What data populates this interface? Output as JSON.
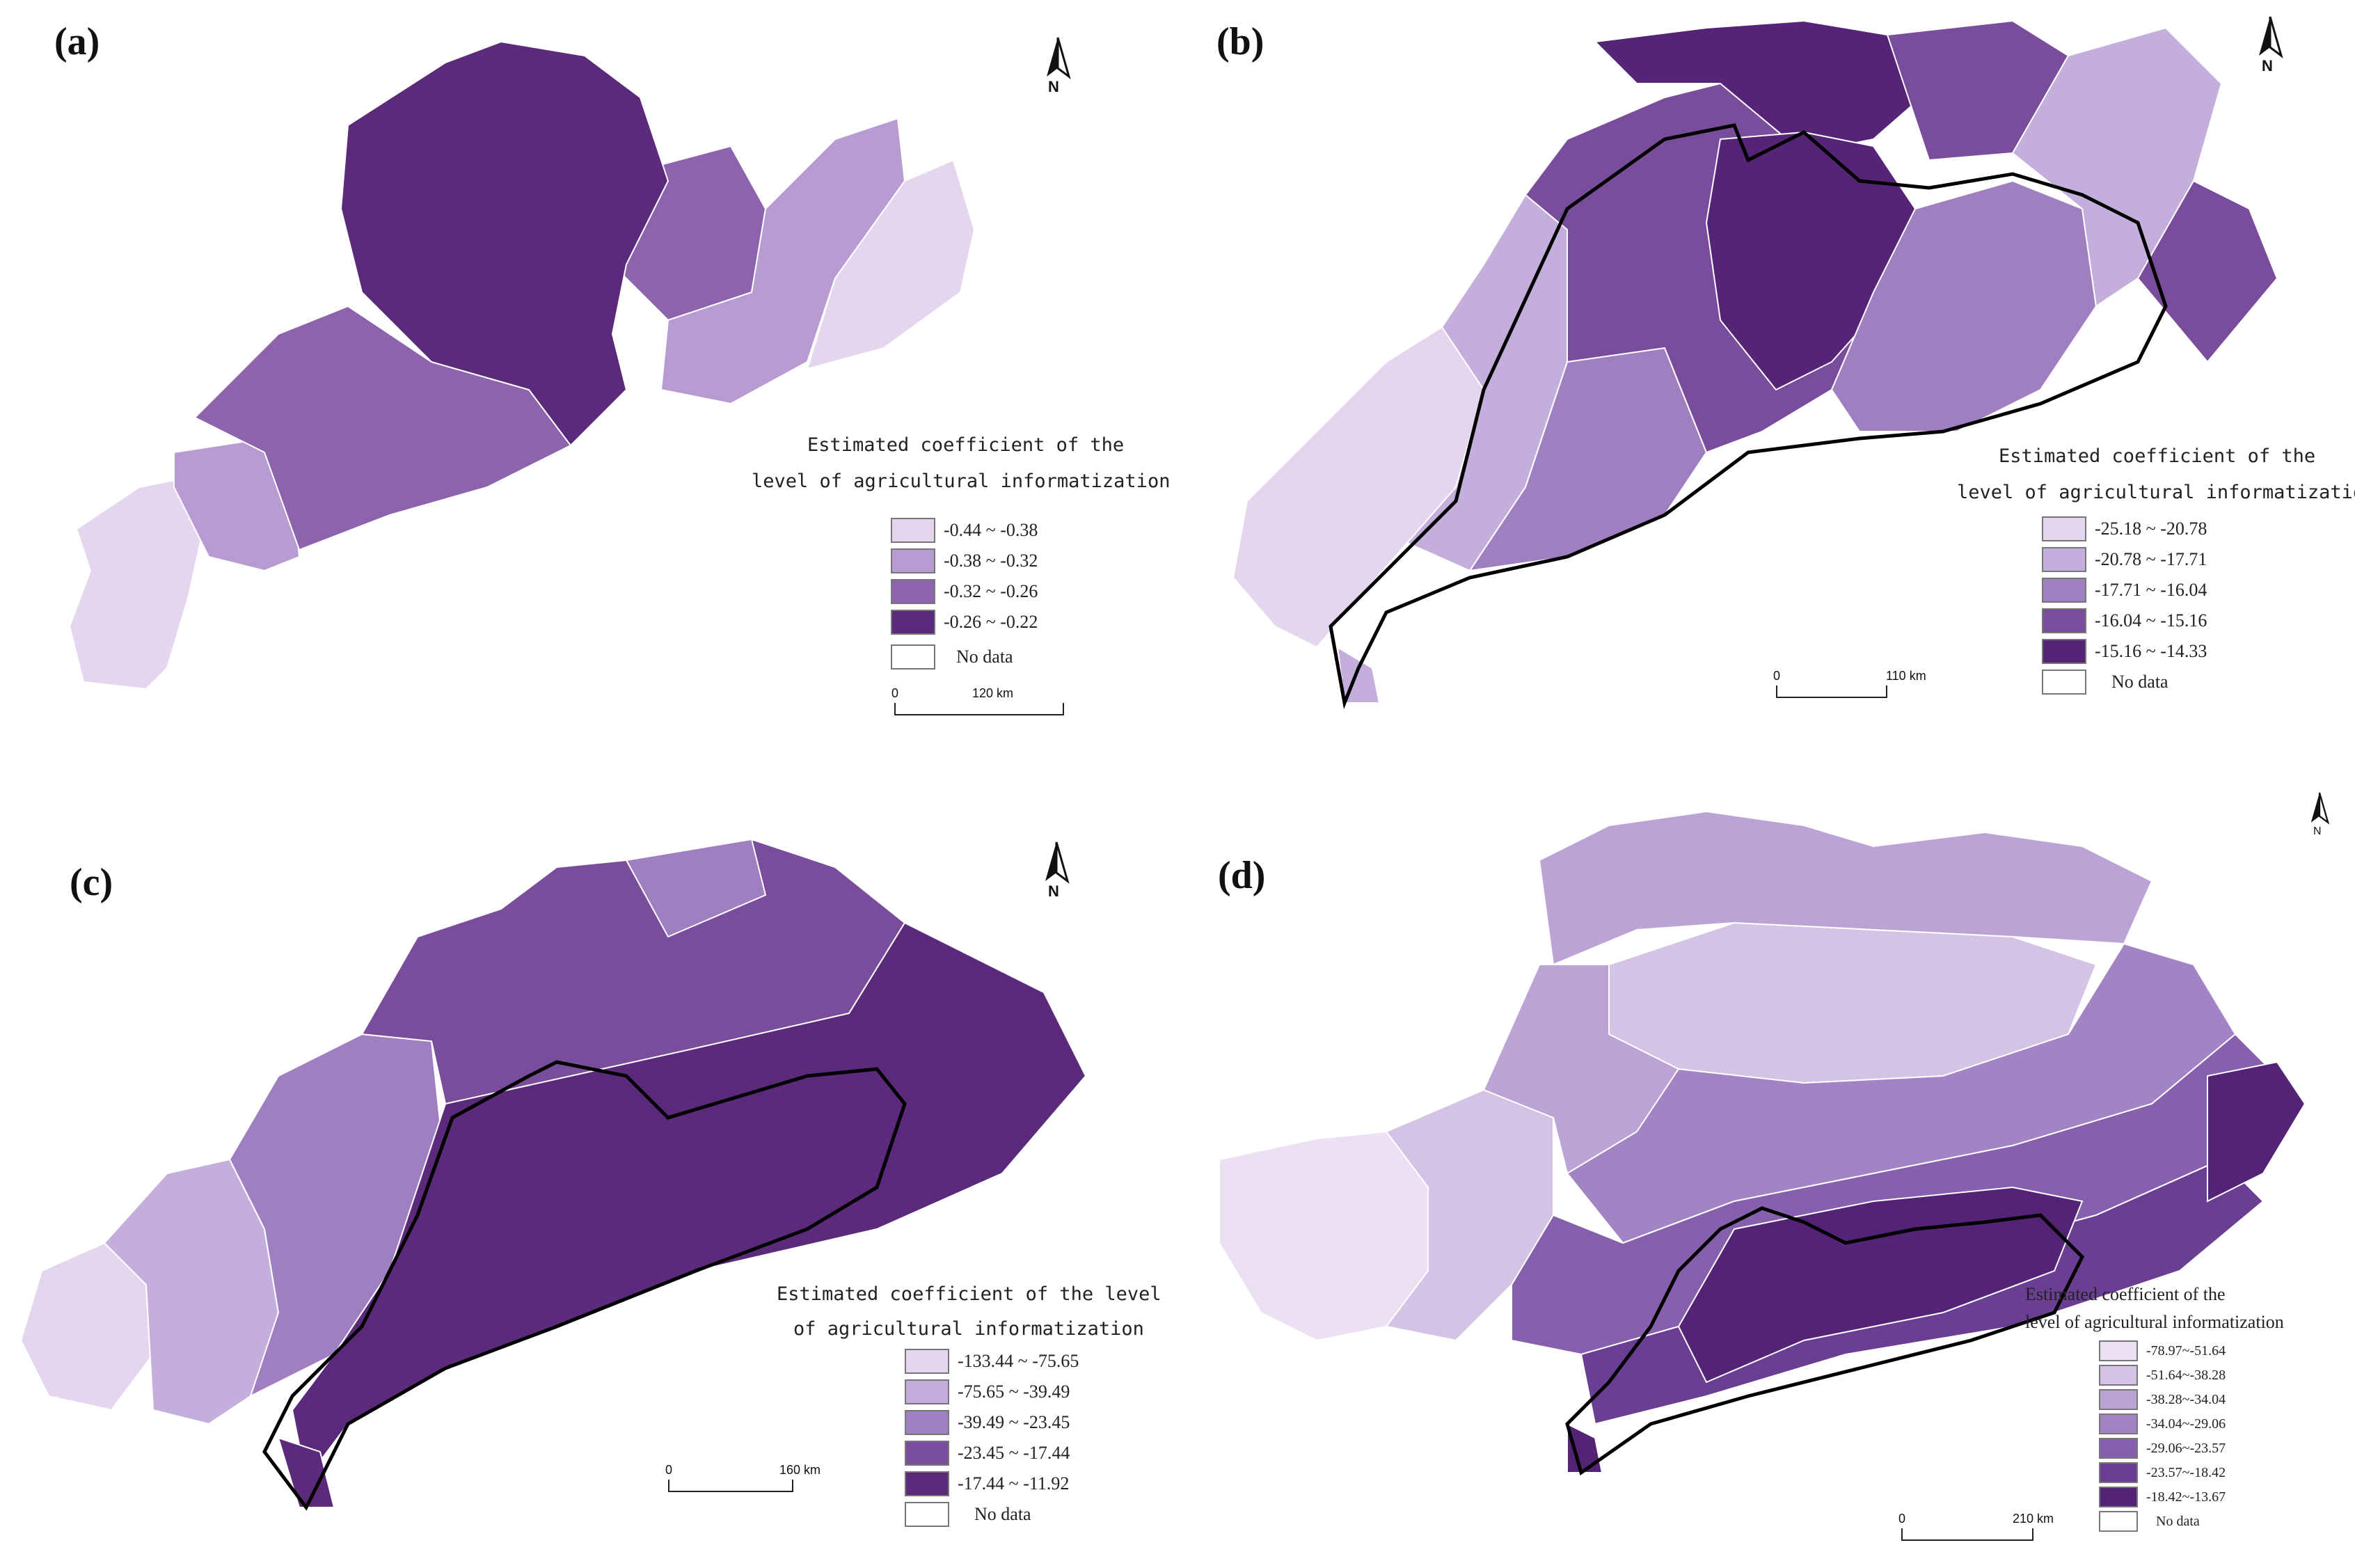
{
  "panels": [
    {
      "id": "a",
      "label": "(a)",
      "north_label": "N",
      "legend_title_lines": [
        "Estimated coefficient of the",
        "level of agricultural informatization"
      ],
      "classes": [
        {
          "range": "-0.44 ~ -0.38",
          "color": "#e4d6ef"
        },
        {
          "range": "-0.38 ~ -0.32",
          "color": "#b89bd0"
        },
        {
          "range": "-0.32 ~ -0.26",
          "color": "#8c63ac"
        },
        {
          "range": "-0.26 ~ -0.22",
          "color": "#5b2a7a"
        }
      ],
      "no_data": "No data",
      "scale": {
        "start": "0",
        "end": "120 km"
      }
    },
    {
      "id": "b",
      "label": "(b)",
      "north_label": "N",
      "legend_title_lines": [
        "Estimated coefficient of the",
        "level of agricultural informatization"
      ],
      "classes": [
        {
          "range": "-25.18 ~ -20.78",
          "color": "#e4d6ef"
        },
        {
          "range": "-20.78 ~ -17.71",
          "color": "#c4aedb"
        },
        {
          "range": "-17.71 ~ -16.04",
          "color": "#a07fc0"
        },
        {
          "range": "-16.04 ~ -15.16",
          "color": "#7a4c9c"
        },
        {
          "range": "-15.16 ~ -14.33",
          "color": "#552477"
        }
      ],
      "no_data": "No data",
      "scale": {
        "start": "0",
        "end": "110 km"
      }
    },
    {
      "id": "c",
      "label": "(c)",
      "north_label": "N",
      "legend_title_lines": [
        "Estimated coefficient of the level",
        "of agricultural informatization"
      ],
      "classes": [
        {
          "range": "-133.44 ~ -75.65",
          "color": "#e4d6ef"
        },
        {
          "range": "-75.65 ~ -39.49",
          "color": "#c4aedb"
        },
        {
          "range": "-39.49 ~ -23.45",
          "color": "#a07fc0"
        },
        {
          "range": "-23.45 ~ -17.44",
          "color": "#7a4c9c"
        },
        {
          "range": "-17.44 ~ -11.92",
          "color": "#5b2a7a"
        }
      ],
      "no_data": "No data",
      "scale": {
        "start": "0",
        "end": "160 km"
      }
    },
    {
      "id": "d",
      "label": "(d)",
      "north_label": "N",
      "legend_title_lines": [
        "Estimated coefficient of the",
        "level of agricultural informatization"
      ],
      "classes": [
        {
          "range": "-78.97~-51.64",
          "color": "#ebe1f3"
        },
        {
          "range": "-51.64~-38.28",
          "color": "#d5c3e6"
        },
        {
          "range": "-38.28~-34.04",
          "color": "#bca3d6"
        },
        {
          "range": "-34.04~-29.06",
          "color": "#a283c3"
        },
        {
          "range": "-29.06~-23.57",
          "color": "#8660ac"
        },
        {
          "range": "-23.57~-18.42",
          "color": "#6a3f93"
        },
        {
          "range": "-18.42~-13.67",
          "color": "#532476"
        }
      ],
      "no_data": "No data",
      "scale": {
        "start": "0",
        "end": "210 km"
      }
    }
  ]
}
